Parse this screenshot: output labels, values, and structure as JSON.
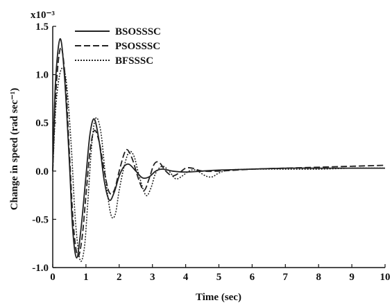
{
  "chart_data": {
    "type": "line",
    "title": "",
    "xlabel": "Time (sec)",
    "ylabel": "Change in speed (rad sec⁻¹)",
    "y_multiplier_label": "x10⁻³",
    "xlim": [
      0,
      10
    ],
    "ylim": [
      -1.0,
      1.5
    ],
    "x_ticks": [
      0,
      1,
      2,
      3,
      4,
      5,
      6,
      7,
      8,
      9,
      10
    ],
    "x_tick_labels": [
      "0",
      "1",
      "2",
      "3",
      "4",
      "5",
      "6",
      "7",
      "8",
      "9",
      "10"
    ],
    "y_ticks": [
      1.5,
      1.0,
      0.5,
      0.0,
      -0.5,
      -1.0
    ],
    "y_tick_labels": [
      "1.5",
      "1.0",
      "0.5",
      "0.0",
      "-0.5",
      "-1.0"
    ],
    "grid": false,
    "legend_position": "top-left",
    "series": [
      {
        "name": "BSOSSSC",
        "dash": "solid",
        "points": [
          [
            0,
            0
          ],
          [
            0.08,
            0.9
          ],
          [
            0.22,
            1.37
          ],
          [
            0.35,
            1.0
          ],
          [
            0.5,
            0.1
          ],
          [
            0.6,
            -0.6
          ],
          [
            0.72,
            -0.9
          ],
          [
            0.85,
            -0.6
          ],
          [
            1.0,
            -0.05
          ],
          [
            1.12,
            0.38
          ],
          [
            1.25,
            0.54
          ],
          [
            1.4,
            0.3
          ],
          [
            1.55,
            -0.1
          ],
          [
            1.7,
            -0.3
          ],
          [
            1.85,
            -0.22
          ],
          [
            2.0,
            -0.05
          ],
          [
            2.15,
            0.05
          ],
          [
            2.3,
            0.07
          ],
          [
            2.5,
            0.0
          ],
          [
            2.7,
            -0.07
          ],
          [
            2.9,
            -0.06
          ],
          [
            3.1,
            0.0
          ],
          [
            3.3,
            0.02
          ],
          [
            3.6,
            0.0
          ],
          [
            4.0,
            -0.01
          ],
          [
            4.5,
            0.0
          ],
          [
            5.0,
            0.01
          ],
          [
            6.0,
            0.02
          ],
          [
            7.0,
            0.03
          ],
          [
            8.0,
            0.03
          ],
          [
            9.0,
            0.03
          ],
          [
            10.0,
            0.03
          ]
        ]
      },
      {
        "name": "PSOSSSC",
        "dash": "dashed",
        "points": [
          [
            0,
            0
          ],
          [
            0.1,
            0.85
          ],
          [
            0.24,
            1.28
          ],
          [
            0.38,
            0.95
          ],
          [
            0.5,
            0.2
          ],
          [
            0.62,
            -0.55
          ],
          [
            0.75,
            -0.88
          ],
          [
            0.88,
            -0.7
          ],
          [
            1.0,
            -0.25
          ],
          [
            1.12,
            0.2
          ],
          [
            1.25,
            0.42
          ],
          [
            1.4,
            0.3
          ],
          [
            1.55,
            0.0
          ],
          [
            1.7,
            -0.22
          ],
          [
            1.85,
            -0.2
          ],
          [
            2.0,
            0.0
          ],
          [
            2.15,
            0.18
          ],
          [
            2.25,
            0.22
          ],
          [
            2.4,
            0.12
          ],
          [
            2.6,
            -0.1
          ],
          [
            2.75,
            -0.2
          ],
          [
            2.9,
            -0.08
          ],
          [
            3.05,
            0.07
          ],
          [
            3.2,
            0.09
          ],
          [
            3.4,
            0.0
          ],
          [
            3.6,
            -0.05
          ],
          [
            3.8,
            -0.02
          ],
          [
            4.0,
            0.03
          ],
          [
            4.2,
            0.03
          ],
          [
            4.5,
            0.0
          ],
          [
            5.0,
            0.0
          ],
          [
            6.0,
            0.02
          ],
          [
            7.0,
            0.03
          ],
          [
            8.0,
            0.04
          ],
          [
            9.0,
            0.05
          ],
          [
            10.0,
            0.06
          ]
        ]
      },
      {
        "name": "BFSSSC",
        "dash": "dotted",
        "points": [
          [
            0,
            0
          ],
          [
            0.1,
            0.7
          ],
          [
            0.25,
            1.05
          ],
          [
            0.4,
            0.95
          ],
          [
            0.55,
            0.3
          ],
          [
            0.68,
            -0.5
          ],
          [
            0.82,
            -0.92
          ],
          [
            0.95,
            -0.8
          ],
          [
            1.05,
            -0.35
          ],
          [
            1.18,
            0.3
          ],
          [
            1.3,
            0.55
          ],
          [
            1.45,
            0.4
          ],
          [
            1.6,
            -0.1
          ],
          [
            1.75,
            -0.45
          ],
          [
            1.88,
            -0.45
          ],
          [
            2.0,
            -0.2
          ],
          [
            2.15,
            0.05
          ],
          [
            2.3,
            0.2
          ],
          [
            2.45,
            0.15
          ],
          [
            2.6,
            -0.05
          ],
          [
            2.8,
            -0.25
          ],
          [
            2.95,
            -0.18
          ],
          [
            3.1,
            -0.02
          ],
          [
            3.3,
            0.05
          ],
          [
            3.5,
            0.0
          ],
          [
            3.7,
            -0.08
          ],
          [
            3.9,
            -0.05
          ],
          [
            4.1,
            0.0
          ],
          [
            4.3,
            0.01
          ],
          [
            4.6,
            -0.05
          ],
          [
            4.8,
            -0.06
          ],
          [
            5.0,
            -0.02
          ],
          [
            5.3,
            0.01
          ],
          [
            6.0,
            0.02
          ],
          [
            7.0,
            0.02
          ],
          [
            8.0,
            0.02
          ],
          [
            9.0,
            0.03
          ],
          [
            10.0,
            0.03
          ]
        ]
      }
    ]
  }
}
